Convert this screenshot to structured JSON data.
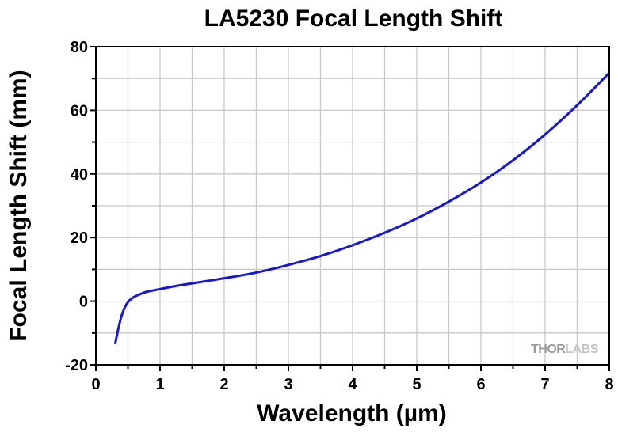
{
  "chart_data": {
    "type": "line",
    "title": "LA5230 Focal Length Shift",
    "xlabel": "Wavelength (µm)",
    "ylabel": "Focal Length Shift (mm)",
    "xlim": [
      0,
      8
    ],
    "ylim": [
      -20,
      80
    ],
    "xticks": [
      "0",
      "1",
      "2",
      "3",
      "4",
      "5",
      "6",
      "7",
      "8"
    ],
    "yticks": [
      "-20",
      "0",
      "20",
      "40",
      "60",
      "80"
    ],
    "grid": true,
    "series": [
      {
        "color": "#1414e6",
        "x": [
          0.3,
          0.33,
          0.36,
          0.4,
          0.45,
          0.5,
          0.55,
          0.6,
          0.7,
          0.8,
          0.9,
          1.0,
          1.2,
          1.5,
          2.0,
          2.5,
          3.0,
          3.5,
          4.0,
          4.5,
          5.0,
          5.5,
          6.0,
          6.5,
          7.0,
          7.5,
          8.0
        ],
        "y": [
          -13.5,
          -10.5,
          -7.8,
          -4.6,
          -2.0,
          -0.3,
          0.7,
          1.4,
          2.3,
          3.0,
          3.4,
          3.8,
          4.6,
          5.6,
          7.2,
          9.0,
          11.4,
          14.2,
          17.6,
          21.5,
          26.0,
          31.3,
          37.3,
          44.3,
          52.4,
          61.6,
          71.8
        ]
      }
    ]
  },
  "watermark": {
    "text_dark": "THOR",
    "text_light": "LABS"
  }
}
